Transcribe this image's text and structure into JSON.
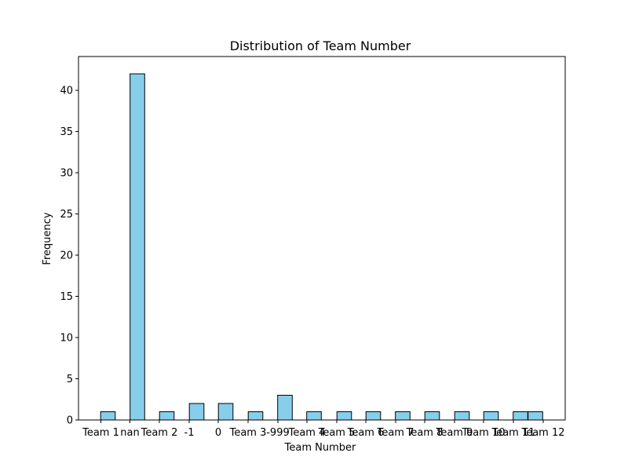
{
  "colors": {
    "bar_fill": "#87ceeb",
    "bar_edge": "#000000",
    "axes": "#000000",
    "background": "#ffffff"
  },
  "chart_data": {
    "type": "bar",
    "title": "Distribution of Team Number",
    "xlabel": "Team Number",
    "ylabel": "Frequency",
    "categories": [
      "Team 1",
      "nan",
      "Team 2",
      "-1",
      "0",
      "Team 3",
      "-999",
      "Team 4",
      "Team 5",
      "Team 6",
      "Team 7",
      "Team 8",
      "Team 9",
      "Team 10",
      "Team 11",
      "Team 12"
    ],
    "values": [
      1,
      42,
      1,
      2,
      2,
      1,
      3,
      1,
      1,
      1,
      1,
      1,
      1,
      1,
      1,
      1
    ],
    "ylim": [
      0,
      44.1
    ],
    "yticks": [
      0,
      5,
      10,
      15,
      20,
      25,
      30,
      35,
      40
    ],
    "grid": false,
    "legend": "none"
  }
}
